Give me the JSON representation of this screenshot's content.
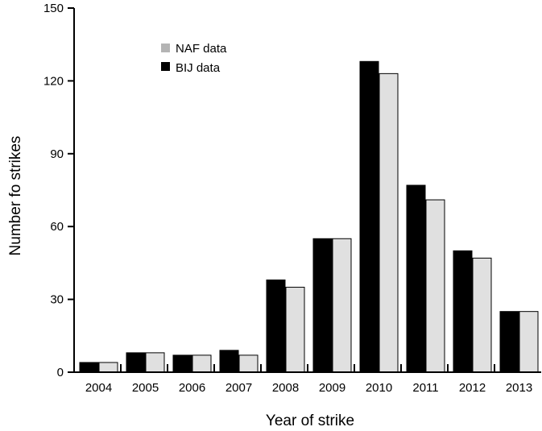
{
  "chart_data": {
    "type": "bar",
    "categories": [
      "2004",
      "2005",
      "2006",
      "2007",
      "2008",
      "2009",
      "2010",
      "2011",
      "2012",
      "2013"
    ],
    "series": [
      {
        "name": "BIJ data",
        "color": "#000000",
        "values": [
          4,
          8,
          7,
          9,
          38,
          55,
          128,
          77,
          50,
          25
        ]
      },
      {
        "name": "NAF data",
        "color": "#e0e0e0",
        "values": [
          4,
          8,
          7,
          7,
          35,
          55,
          123,
          71,
          47,
          25
        ]
      }
    ],
    "xlabel": "Year of strike",
    "ylabel": "Number fo strikes",
    "ylim": [
      0,
      150
    ],
    "yticks": [
      0,
      30,
      60,
      90,
      120,
      150
    ],
    "grid": false,
    "legend_position": "top-left",
    "legend_order": [
      "NAF data",
      "BIJ data"
    ],
    "legend_swatch_colors": {
      "NAF data": "#b4b4b4",
      "BIJ data": "#000000"
    }
  }
}
